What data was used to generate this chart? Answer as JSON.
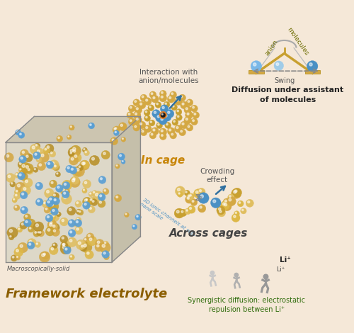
{
  "bg_color": "#f5e8d8",
  "title_text": "Framework electrolyte",
  "title_color": "#8B5E00",
  "title_fontsize": 13,
  "label_macrosolid": "Macroscopically-solid",
  "label_3d": "3D ionic channels at sub-\nnano scale",
  "label_incage": "In cage",
  "label_acrosscages": "Across cages",
  "label_interaction": "Interaction with\nanion/molecules",
  "label_crowding": "Crowding\neffect",
  "label_diffusion": "Diffusion under assistant\nof molecules",
  "label_synergistic": "Synergistic diffusion: electrostatic\nrepulsion between Li⁺",
  "label_swing": "Swing",
  "label_anion": "anion",
  "label_molecules": "molecules",
  "color_gold": "#D4A017",
  "color_blue": "#4A90C4",
  "color_blue_light": "#7ab8e8",
  "color_orange": "#E67E22",
  "color_incage": "#C8860A",
  "color_green_label": "#2E6B0A",
  "color_swing_label": "#6B6B00",
  "color_gray_label": "#555555"
}
